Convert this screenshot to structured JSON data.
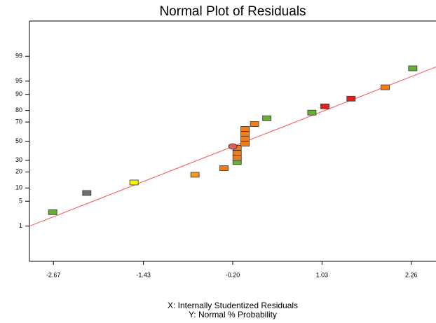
{
  "chart_data": {
    "type": "scatter",
    "title": "Normal Plot of Residuals",
    "x_label": "X: Internally Studentized Residuals",
    "y_label": "Y: Normal % Probability",
    "y_scale": "probability",
    "xlim": [
      -3,
      2.6
    ],
    "ylim": [
      0.05,
      99.95
    ],
    "xticks": [
      -2.67,
      -1.43,
      {
        "value": -0.2,
        "label": "-0.20"
      },
      1.03,
      2.26
    ],
    "yticks": [
      1,
      5,
      10,
      20,
      30,
      50,
      70,
      80,
      90,
      95,
      99
    ],
    "x": [
      -2.68,
      -2.21,
      -1.56,
      -0.72,
      -0.32,
      -0.14,
      -0.14,
      -0.14,
      -0.14,
      -0.2,
      -0.03,
      -0.03,
      -0.03,
      -0.03,
      0.1,
      0.27,
      0.89,
      1.07,
      1.43,
      1.9,
      2.28
    ],
    "values": [
      2.6,
      7.8,
      12.9,
      17.9,
      23,
      28.4,
      32.6,
      37.4,
      42.9,
      44.3,
      47.3,
      52.8,
      57.9,
      63.2,
      68,
      73.5,
      78.3,
      83,
      87.8,
      93,
      97.7
    ],
    "colors": [
      "#66b032",
      "#707070",
      "#f5f500",
      "#f39a1c",
      "#f07d1a",
      "#66b032",
      "#f07d1a",
      "#f07d1a",
      "#f07d1a",
      "#d86060",
      "#f07d1a",
      "#f07d1a",
      "#f07d1a",
      "#f07d1a",
      "#f07d1a",
      "#66b032",
      "#66b032",
      "#e02020",
      "#e02020",
      "#f07d1a",
      "#66b032"
    ],
    "markers": [
      "rect",
      "rect",
      "rect",
      "rect",
      "rect",
      "rect",
      "rect",
      "rect",
      "rect",
      "circle",
      "rect",
      "rect",
      "rect",
      "rect",
      "rect",
      "rect",
      "rect",
      "rect",
      "rect",
      "rect",
      "rect"
    ],
    "reference_line": {
      "x": [
        -3,
        2.6
      ],
      "values": [
        1,
        97.9
      ],
      "color": "#f07070"
    }
  }
}
